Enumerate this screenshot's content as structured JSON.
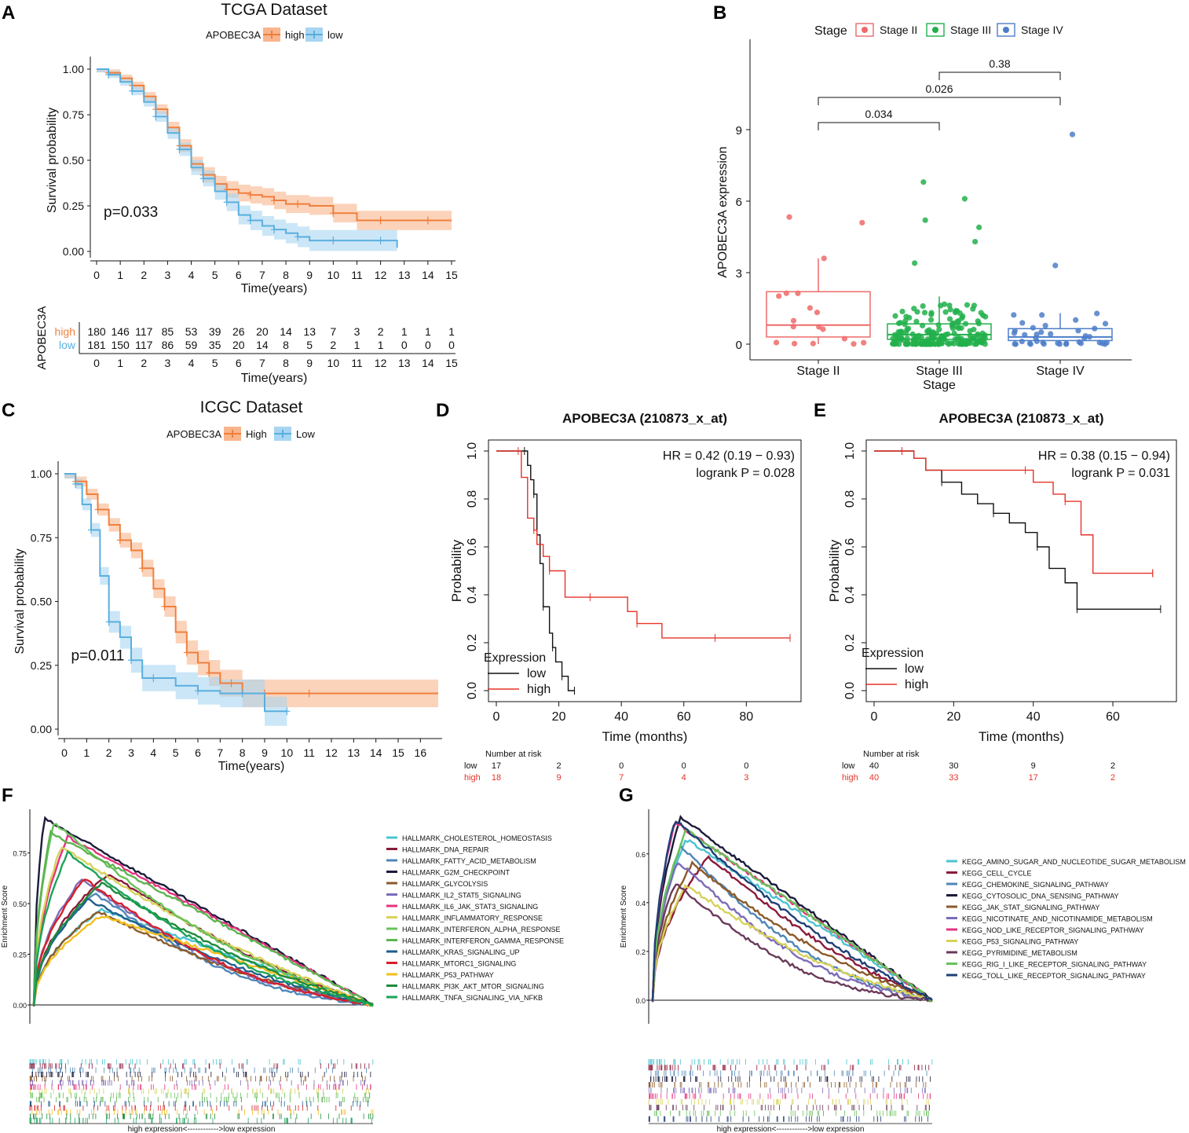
{
  "colors": {
    "orange": "#F07F3C",
    "orange_fill": "#F9B58C",
    "blue": "#5AAFDE",
    "blue_fill": "#A8D5F2",
    "red": "#E6332A",
    "black": "#111111",
    "stage2": "#EE6A6A",
    "stage3": "#22B04B",
    "stage4": "#4D7EC8"
  },
  "panels": {
    "A": "A",
    "B": "B",
    "C": "C",
    "D": "D",
    "E": "E",
    "F": "F",
    "G": "G"
  },
  "chart_data": [
    {
      "id": "A",
      "type": "line",
      "title": "TCGA Dataset",
      "legend_title": "APOBEC3A",
      "legend": [
        "high",
        "low"
      ],
      "xlabel": "Time(years)",
      "ylabel": "Survival probability",
      "xlim": [
        0,
        15
      ],
      "ylim": [
        0,
        1
      ],
      "xticks": [
        "0",
        "1",
        "2",
        "3",
        "4",
        "5",
        "6",
        "7",
        "8",
        "9",
        "10",
        "11",
        "12",
        "13",
        "14",
        "15"
      ],
      "yticks": [
        "0.00",
        "0.25",
        "0.50",
        "0.75",
        "1.00"
      ],
      "pvalue": "p=0.033",
      "series": [
        {
          "name": "high",
          "x": [
            0,
            0.5,
            1,
            1.5,
            2,
            2.5,
            3,
            3.5,
            4,
            4.5,
            5,
            5.5,
            6,
            6.5,
            7,
            7.5,
            8,
            8.5,
            9,
            10,
            11,
            12,
            13,
            14,
            15
          ],
          "y": [
            1,
            0.98,
            0.95,
            0.91,
            0.85,
            0.78,
            0.68,
            0.58,
            0.48,
            0.42,
            0.37,
            0.34,
            0.32,
            0.31,
            0.3,
            0.28,
            0.26,
            0.26,
            0.25,
            0.21,
            0.17,
            0.17,
            0.17,
            0.17,
            0.17
          ]
        },
        {
          "name": "low",
          "x": [
            0,
            0.5,
            1,
            1.5,
            2,
            2.5,
            3,
            3.5,
            4,
            4.5,
            5,
            5.5,
            6,
            6.5,
            7,
            7.5,
            8,
            8.5,
            9,
            10,
            11,
            12,
            12.7
          ],
          "y": [
            1,
            0.97,
            0.93,
            0.88,
            0.82,
            0.74,
            0.65,
            0.56,
            0.46,
            0.4,
            0.33,
            0.27,
            0.2,
            0.17,
            0.14,
            0.12,
            0.1,
            0.08,
            0.06,
            0.06,
            0.06,
            0.06,
            0.02
          ]
        }
      ],
      "risk_table": {
        "title": "APOBEC3A",
        "xlabel": "Time(years)",
        "rows": [
          {
            "name": "high",
            "values": [
              "180",
              "146",
              "117",
              "85",
              "53",
              "39",
              "26",
              "20",
              "14",
              "13",
              "7",
              "3",
              "2",
              "1",
              "1",
              "1"
            ]
          },
          {
            "name": "low",
            "values": [
              "181",
              "150",
              "117",
              "86",
              "59",
              "35",
              "20",
              "14",
              "8",
              "5",
              "2",
              "1",
              "1",
              "0",
              "0",
              "0"
            ]
          }
        ]
      }
    },
    {
      "id": "B",
      "type": "box",
      "legend_title": "Stage",
      "legend": [
        "Stage II",
        "Stage III",
        "Stage IV"
      ],
      "xlabel": "Stage",
      "ylabel": "APOBEC3A expression",
      "categories": [
        "Stage II",
        "Stage III",
        "Stage IV"
      ],
      "ylim": [
        -0.3,
        12
      ],
      "yticks": [
        "0",
        "3",
        "6",
        "9"
      ],
      "boxes": [
        {
          "q1": 0.3,
          "median": 0.8,
          "q3": 2.2,
          "wlo": 0,
          "whi": 3.6
        },
        {
          "q1": 0.2,
          "median": 0.4,
          "q3": 0.85,
          "wlo": 0,
          "whi": 2
        },
        {
          "q1": 0.15,
          "median": 0.3,
          "q3": 0.65,
          "wlo": 0,
          "whi": 1.3
        }
      ],
      "comparisons": [
        {
          "from": "Stage II",
          "to": "Stage III",
          "label": "0.034"
        },
        {
          "from": "Stage II",
          "to": "Stage IV",
          "label": "0.026"
        },
        {
          "from": "Stage III",
          "to": "Stage IV",
          "label": "0.38"
        }
      ]
    },
    {
      "id": "C",
      "type": "line",
      "title": "ICGC Dataset",
      "legend_title": "APOBEC3A",
      "legend": [
        "High",
        "Low"
      ],
      "xlabel": "Time(years)",
      "ylabel": "Survival probability",
      "xlim": [
        0,
        16.8
      ],
      "ylim": [
        0,
        1
      ],
      "xticks": [
        "0",
        "1",
        "2",
        "3",
        "4",
        "5",
        "6",
        "7",
        "8",
        "9",
        "10",
        "11",
        "12",
        "13",
        "14",
        "15",
        "16"
      ],
      "yticks": [
        "0.00",
        "0.25",
        "0.50",
        "0.75",
        "1.00"
      ],
      "pvalue": "p=0.011",
      "series": [
        {
          "name": "High",
          "x": [
            0,
            0.5,
            1,
            1.5,
            2,
            2.5,
            3,
            3.5,
            4,
            4.5,
            5,
            5.5,
            6,
            6.5,
            7,
            7.5,
            8,
            9,
            10,
            11,
            16.8
          ],
          "y": [
            1,
            0.97,
            0.92,
            0.86,
            0.8,
            0.74,
            0.7,
            0.63,
            0.55,
            0.48,
            0.38,
            0.3,
            0.26,
            0.22,
            0.18,
            0.18,
            0.14,
            0.14,
            0.14,
            0.14,
            0.14
          ]
        },
        {
          "name": "Low",
          "x": [
            0,
            0.5,
            0.8,
            1.2,
            1.6,
            2,
            2.5,
            3,
            3.5,
            4,
            5,
            6,
            7,
            8,
            9,
            10
          ],
          "y": [
            1,
            0.96,
            0.88,
            0.78,
            0.6,
            0.42,
            0.36,
            0.27,
            0.2,
            0.2,
            0.17,
            0.15,
            0.14,
            0.14,
            0.07,
            0.07
          ]
        }
      ]
    },
    {
      "id": "D",
      "type": "line",
      "title": "APOBEC3A (210873_x_at)",
      "xlabel": "Time (months)",
      "ylabel": "Probability",
      "xlim": [
        0,
        95
      ],
      "ylim": [
        0,
        1
      ],
      "xticks": [
        "0",
        "20",
        "40",
        "60",
        "80"
      ],
      "yticks": [
        "0.0",
        "0.2",
        "0.4",
        "0.6",
        "0.8",
        "1.0"
      ],
      "hr": "HR = 0.42 (0.19 − 0.93)",
      "logrank": "logrank P = 0.028",
      "legend_title": "Expression",
      "legend": [
        "low",
        "high"
      ],
      "series": [
        {
          "name": "low",
          "x": [
            0,
            9,
            10,
            11,
            12,
            13,
            14,
            15,
            16,
            17,
            18,
            19,
            20,
            21,
            22,
            23,
            25
          ],
          "y": [
            1,
            1,
            0.94,
            0.88,
            0.82,
            0.65,
            0.53,
            0.35,
            0.35,
            0.24,
            0.18,
            0.12,
            0.12,
            0.06,
            0.06,
            0.0,
            0.0
          ]
        },
        {
          "name": "high",
          "x": [
            0,
            7,
            8,
            10,
            12,
            13,
            15,
            17,
            20,
            22,
            30,
            40,
            42,
            45,
            47,
            53,
            70,
            94
          ],
          "y": [
            1,
            1,
            0.89,
            0.72,
            0.67,
            0.61,
            0.56,
            0.5,
            0.5,
            0.39,
            0.39,
            0.39,
            0.33,
            0.28,
            0.28,
            0.22,
            0.22,
            0.22
          ]
        }
      ],
      "risk_table": {
        "title": "Number at risk",
        "ticks": [
          "0",
          "20",
          "40",
          "60",
          "80"
        ],
        "rows": [
          {
            "name": "low",
            "values": [
              "17",
              "2",
              "0",
              "0",
              "0"
            ]
          },
          {
            "name": "high",
            "values": [
              "18",
              "9",
              "7",
              "4",
              "3"
            ]
          }
        ]
      }
    },
    {
      "id": "E",
      "type": "line",
      "title": "APOBEC3A (210873_x_at)",
      "xlabel": "Time (months)",
      "ylabel": "Probability",
      "xlim": [
        0,
        74
      ],
      "ylim": [
        0,
        1
      ],
      "xticks": [
        "0",
        "20",
        "40",
        "60"
      ],
      "yticks": [
        "0.0",
        "0.2",
        "0.4",
        "0.6",
        "0.8",
        "1.0"
      ],
      "hr": "HR = 0.38 (0.15 − 0.94)",
      "logrank": "logrank P = 0.031",
      "legend_title": "Expression",
      "legend": [
        "low",
        "high"
      ],
      "series": [
        {
          "name": "low",
          "x": [
            0,
            7,
            10,
            13,
            17,
            22,
            26,
            30,
            34,
            38,
            41,
            44,
            48,
            51,
            72
          ],
          "y": [
            1,
            1,
            0.97,
            0.92,
            0.87,
            0.82,
            0.78,
            0.74,
            0.7,
            0.66,
            0.6,
            0.51,
            0.45,
            0.34,
            0.34
          ]
        },
        {
          "name": "high",
          "x": [
            0,
            7,
            10,
            13,
            38,
            40,
            45,
            48,
            52,
            55,
            70
          ],
          "y": [
            1,
            1,
            0.97,
            0.92,
            0.92,
            0.87,
            0.82,
            0.79,
            0.65,
            0.49,
            0.49
          ]
        }
      ],
      "risk_table": {
        "title": "Number at risk",
        "ticks": [
          "0",
          "20",
          "40",
          "60"
        ],
        "rows": [
          {
            "name": "low",
            "values": [
              "40",
              "30",
              "9",
              "2"
            ]
          },
          {
            "name": "high",
            "values": [
              "40",
              "33",
              "17",
              "2"
            ]
          }
        ]
      }
    },
    {
      "id": "F",
      "type": "line",
      "ylabel": "Enrichment Score",
      "yticks": [
        "0.00",
        "0.25",
        "0.50",
        "0.75"
      ],
      "xlabel": "high expression<------------>low expression",
      "series": [
        {
          "name": "HALLMARK_CHOLESTEROL_HOMEOSTASIS",
          "color": "#4BC3D1",
          "peak": 0.47,
          "pos": 0.2
        },
        {
          "name": "HALLMARK_DNA_REPAIR",
          "color": "#8B1A3A",
          "peak": 0.65,
          "pos": 0.22
        },
        {
          "name": "HALLMARK_FATTY_ACID_METABOLISM",
          "color": "#4F86B8",
          "peak": 0.55,
          "pos": 0.18
        },
        {
          "name": "HALLMARK_G2M_CHECKPOINT",
          "color": "#1B1B3A",
          "peak": 0.92,
          "pos": 0.03
        },
        {
          "name": "HALLMARK_GLYCOLYSIS",
          "color": "#8B5A2B",
          "peak": 0.46,
          "pos": 0.19
        },
        {
          "name": "HALLMARK_IL2_STAT5_SIGNALING",
          "color": "#7C6BB8",
          "peak": 0.62,
          "pos": 0.14
        },
        {
          "name": "HALLMARK_IL6_JAK_STAT3_SIGNALING",
          "color": "#E3347E",
          "peak": 0.83,
          "pos": 0.1
        },
        {
          "name": "HALLMARK_INFLAMMATORY_RESPONSE",
          "color": "#D7D25A",
          "peak": 0.78,
          "pos": 0.08
        },
        {
          "name": "HALLMARK_INTERFERON_ALPHA_RESPONSE",
          "color": "#67C25A",
          "peak": 0.9,
          "pos": 0.06
        },
        {
          "name": "HALLMARK_INTERFERON_GAMMA_RESPONSE",
          "color": "#5BB54F",
          "peak": 0.85,
          "pos": 0.05
        },
        {
          "name": "HALLMARK_KRAS_SIGNALING_UP",
          "color": "#1F5F8C",
          "peak": 0.52,
          "pos": 0.16
        },
        {
          "name": "HALLMARK_MTORC1_SIGNALING",
          "color": "#D6202A",
          "peak": 0.62,
          "pos": 0.15
        },
        {
          "name": "HALLMARK_P53_PATHWAY",
          "color": "#F2BE1F",
          "peak": 0.44,
          "pos": 0.2
        },
        {
          "name": "HALLMARK_PI3K_AKT_MTOR_SIGNALING",
          "color": "#1E8A3C",
          "peak": 0.6,
          "pos": 0.2
        },
        {
          "name": "HALLMARK_TNFA_SIGNALING_VIA_NFKB",
          "color": "#1BA35A",
          "peak": 0.75,
          "pos": 0.1
        }
      ]
    },
    {
      "id": "G",
      "type": "line",
      "ylabel": "Enrichment Score",
      "yticks": [
        "0.0",
        "0.2",
        "0.4",
        "0.6"
      ],
      "xlabel": "high expression<------------>low expression",
      "series": [
        {
          "name": "KEGG_AMINO_SUGAR_AND_NUCLEOTIDE_SUGAR_METABOLISM",
          "color": "#4BC3D1",
          "peak": 0.66,
          "pos": 0.12
        },
        {
          "name": "KEGG_CELL_CYCLE",
          "color": "#8B1A3A",
          "peak": 0.59,
          "pos": 0.2
        },
        {
          "name": "KEGG_CHEMOKINE_SIGNALING_PATHWAY",
          "color": "#4F86B8",
          "peak": 0.63,
          "pos": 0.1
        },
        {
          "name": "KEGG_CYTOSOLIC_DNA_SENSING_PATHWAY",
          "color": "#1B1B3A",
          "peak": 0.75,
          "pos": 0.1
        },
        {
          "name": "KEGG_JAK_STAT_SIGNALING_PATHWAY",
          "color": "#8B5A2B",
          "peak": 0.56,
          "pos": 0.14
        },
        {
          "name": "KEGG_NICOTINATE_AND_NICOTINAMIDE_METABOLISM",
          "color": "#7C6BB8",
          "peak": 0.57,
          "pos": 0.09
        },
        {
          "name": "KEGG_NOD_LIKE_RECEPTOR_SIGNALING_PATHWAY",
          "color": "#E3347E",
          "peak": 0.73,
          "pos": 0.08
        },
        {
          "name": "KEGG_P53_SIGNALING_PATHWAY",
          "color": "#D7D25A",
          "peak": 0.47,
          "pos": 0.12
        },
        {
          "name": "KEGG_PYRIMIDINE_METABOLISM",
          "color": "#6A3A5A",
          "peak": 0.48,
          "pos": 0.08
        },
        {
          "name": "KEGG_RIG_I_LIKE_RECEPTOR_SIGNALING_PATHWAY",
          "color": "#67C25A",
          "peak": 0.7,
          "pos": 0.12
        },
        {
          "name": "KEGG_TOLL_LIKE_RECEPTOR_SIGNALING_PATHWAY",
          "color": "#1F3F75",
          "peak": 0.74,
          "pos": 0.08
        }
      ]
    }
  ]
}
